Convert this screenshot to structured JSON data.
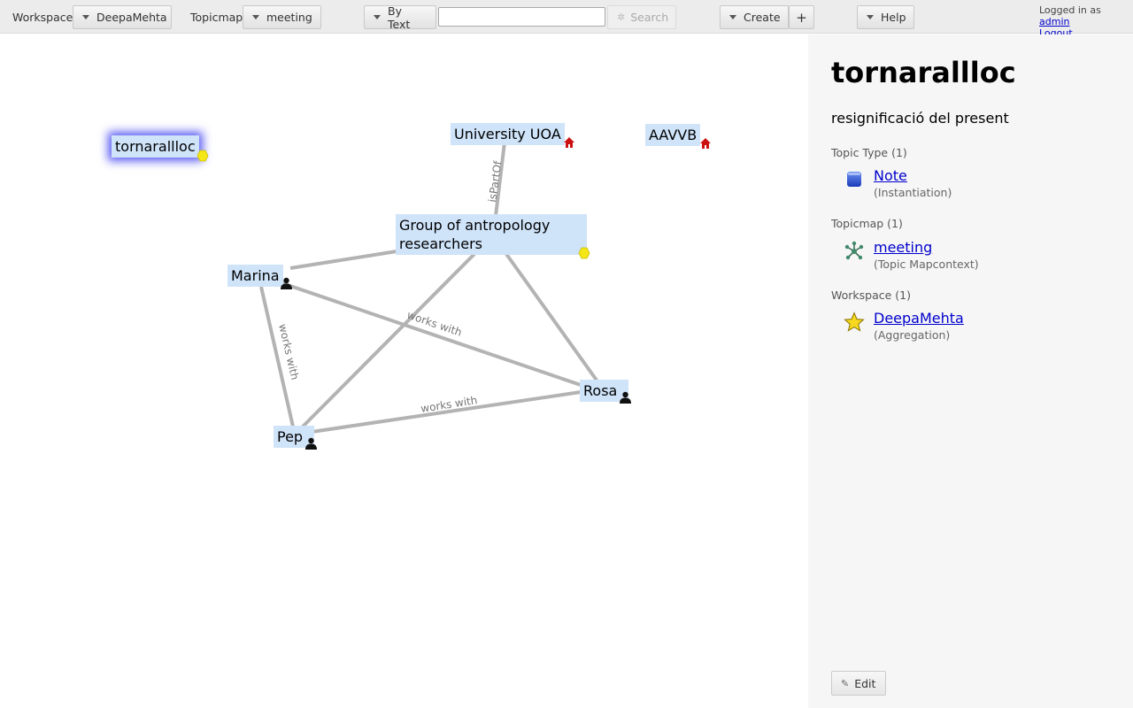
{
  "toolbar": {
    "workspace_label": "Workspace",
    "workspace_value": "DeepaMehta",
    "topicmap_label": "Topicmap",
    "topicmap_value": "meeting",
    "search_mode": "By Text",
    "search_value": "",
    "search_button": "Search",
    "create_button": "Create",
    "add_button": "+",
    "help_button": "Help",
    "logged_in_text": "Logged in as",
    "user": "admin",
    "logout": "Logout"
  },
  "topicmap": {
    "topics": [
      {
        "id": "tornarallloc",
        "label": "tornarallloc",
        "icon": "note-dot-icon",
        "selected": true
      },
      {
        "id": "university",
        "label": "University UOA",
        "icon": "institution-house-icon"
      },
      {
        "id": "aavvb",
        "label": "AAVVB",
        "icon": "institution-house-icon"
      },
      {
        "id": "group",
        "label": "Group of antropology researchers",
        "line1": "Group of antropology",
        "line2": "researchers",
        "icon": "note-dot-icon"
      },
      {
        "id": "marina",
        "label": "Marina",
        "icon": "person-icon"
      },
      {
        "id": "rosa",
        "label": "Rosa",
        "icon": "person-icon"
      },
      {
        "id": "pep",
        "label": "Pep",
        "icon": "person-icon"
      }
    ],
    "associations": [
      {
        "from": "university",
        "to": "group",
        "label": "isPartOf"
      },
      {
        "from": "group",
        "to": "marina",
        "label": ""
      },
      {
        "from": "group",
        "to": "pep",
        "label": ""
      },
      {
        "from": "group",
        "to": "rosa",
        "label": ""
      },
      {
        "from": "marina",
        "to": "rosa",
        "label": "works with"
      },
      {
        "from": "marina",
        "to": "pep",
        "label": "works with"
      },
      {
        "from": "pep",
        "to": "rosa",
        "label": "works with"
      }
    ],
    "colors": {
      "topic_bg": "#cfe3f9",
      "edge": "#b3b3b3",
      "selection_glow": "#5c5cf2",
      "dot": "#f5e617",
      "house": "#cc1111"
    }
  },
  "detail": {
    "title": "tornarallloc",
    "text": "resignificació del present",
    "sections": [
      {
        "heading": "Topic Type (1)",
        "link": "Note",
        "sub": "(Instantiation)",
        "icon": "note-type-icon"
      },
      {
        "heading": "Topicmap (1)",
        "link": "meeting",
        "sub": "(Topic Mapcontext)",
        "icon": "topicmap-network-icon"
      },
      {
        "heading": "Workspace (1)",
        "link": "DeepaMehta",
        "sub": "(Aggregation)",
        "icon": "workspace-star-icon"
      }
    ],
    "edit_button": "Edit"
  }
}
